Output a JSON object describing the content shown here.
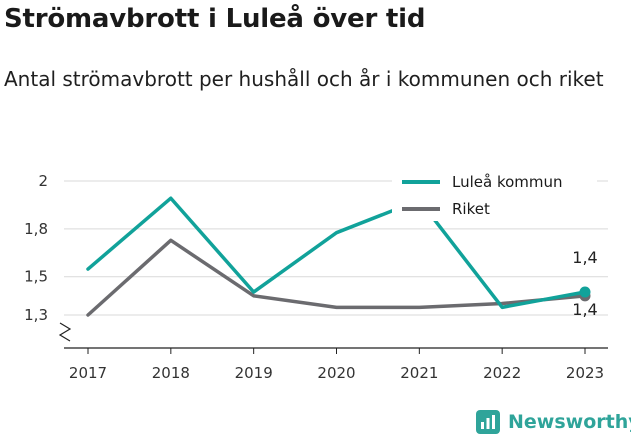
{
  "title": "Strömavbrott i Luleå över tid",
  "subtitle": "Antal strömavbrott per hushåll och år i kommunen och riket",
  "brand": {
    "name": "Newsworthy",
    "color": "#2fa49a"
  },
  "chart_data": {
    "type": "line",
    "x": [
      "2017",
      "2018",
      "2019",
      "2020",
      "2021",
      "2022",
      "2023"
    ],
    "y_ticks": [
      "1,3",
      "1,5",
      "1,8",
      "2"
    ],
    "y_tick_values": [
      1.3,
      1.5,
      1.75,
      2.0
    ],
    "ylim": [
      1.3,
      2.0
    ],
    "axis_break": true,
    "grid": true,
    "legend_position": "top-right",
    "series": [
      {
        "name": "Luleå kommun",
        "color": "#11a29a",
        "values": [
          1.54,
          1.91,
          1.42,
          1.73,
          1.9,
          1.34,
          1.42
        ],
        "end_label": "1,4"
      },
      {
        "name": "Riket",
        "color": "#6b6b6f",
        "values": [
          1.3,
          1.69,
          1.4,
          1.34,
          1.34,
          1.36,
          1.4
        ],
        "end_label": "1,4"
      }
    ]
  }
}
